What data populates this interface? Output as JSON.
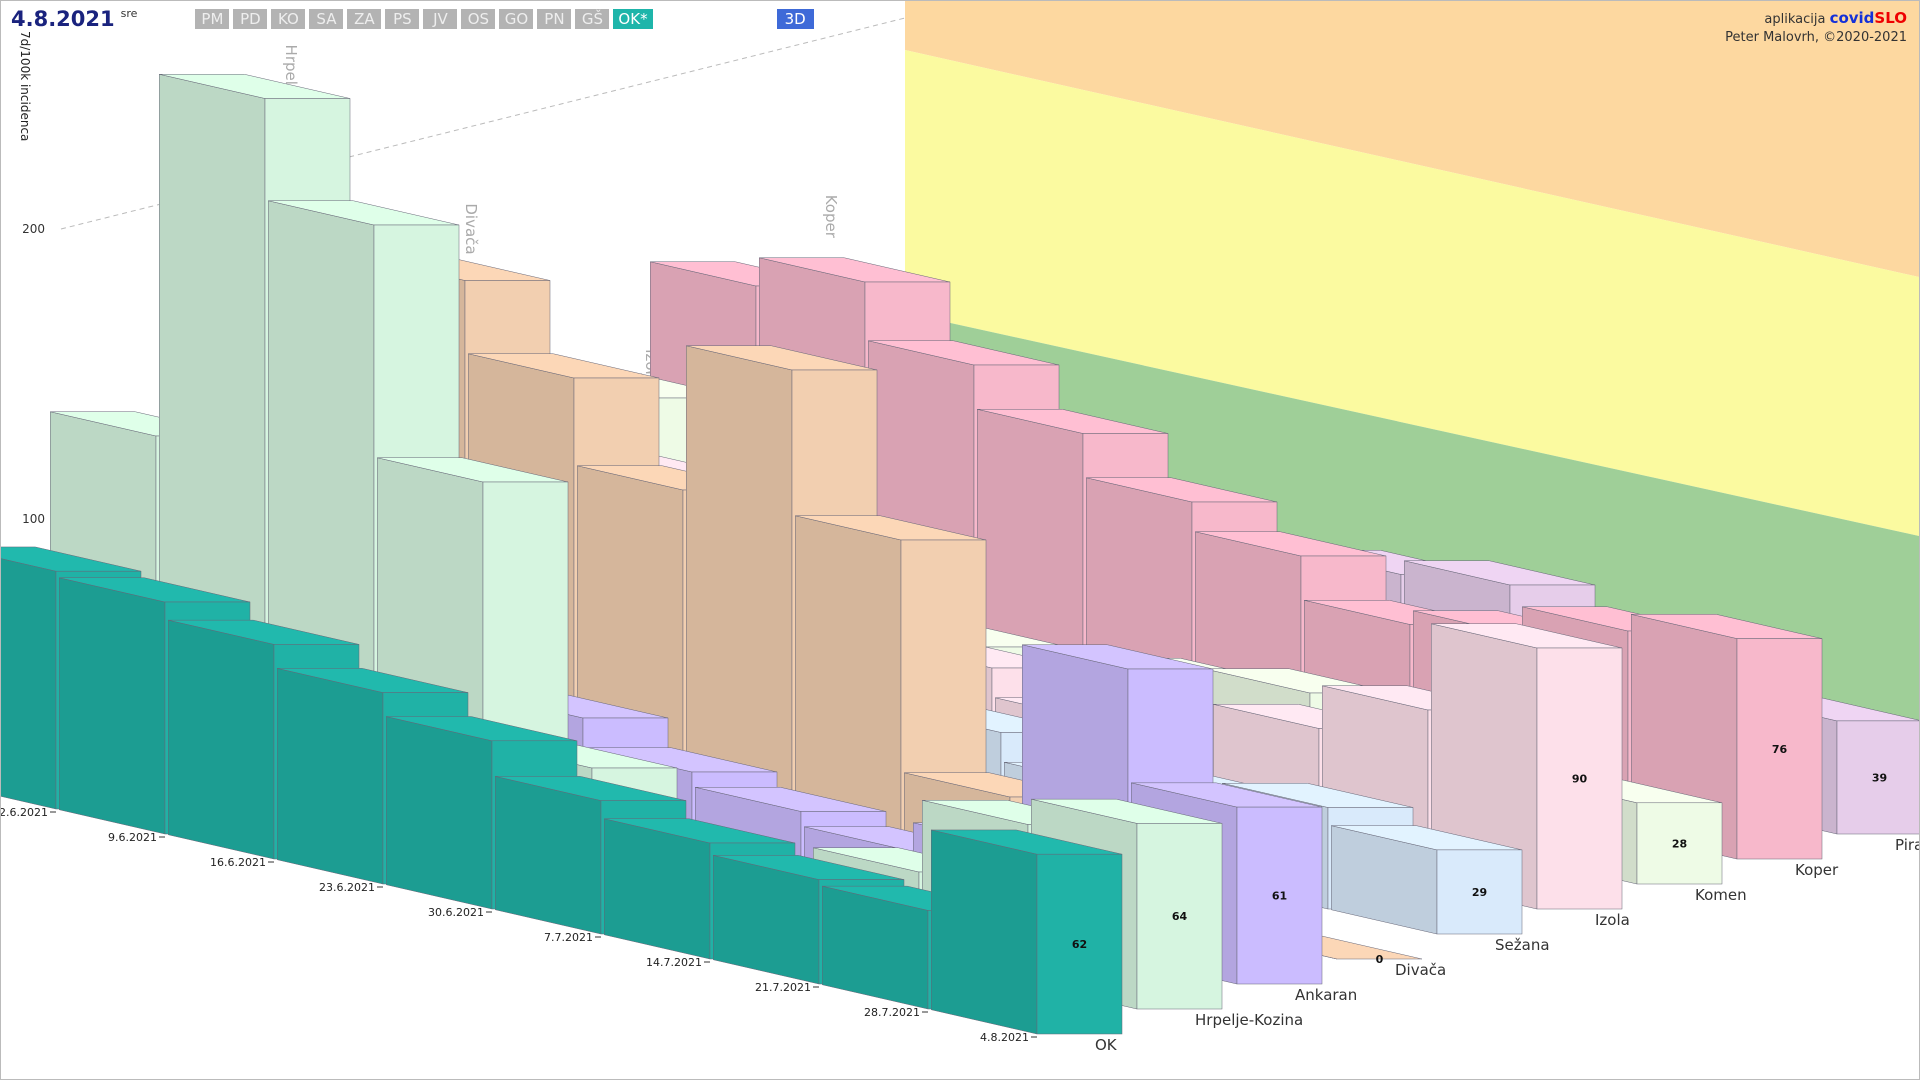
{
  "header": {
    "date": "4.8.2021",
    "weekday": "sre",
    "regions": [
      "PM",
      "PD",
      "KO",
      "SA",
      "ZA",
      "PS",
      "JV",
      "OS",
      "GO",
      "PN",
      "GŠ",
      "OK*"
    ],
    "active_region": "OK*",
    "view": "3D",
    "app_prefix": "aplikacija",
    "app_name_1": "covid",
    "app_name_2": "SLO",
    "author": "Peter Malovrh, ©2020-2021"
  },
  "chart_data": {
    "type": "bar3d",
    "y_label": "7d/100k incidenca",
    "x": [
      "2.6.2021",
      "9.6.2021",
      "16.6.2021",
      "23.6.2021",
      "30.6.2021",
      "7.7.2021",
      "14.7.2021",
      "21.7.2021",
      "28.7.2021",
      "4.8.2021"
    ],
    "ylim": [
      0,
      250
    ],
    "yticks": [
      100,
      200
    ],
    "grid": true,
    "series": [
      {
        "name": "OK",
        "color": "#20b2a6",
        "values": [
          82,
          80,
          74,
          66,
          58,
          46,
          40,
          36,
          34,
          62
        ]
      },
      {
        "name": "Hrpelje-Kozina",
        "color": "#d6f5e0",
        "values": [
          120,
          245,
          210,
          130,
          40,
          15,
          10,
          30,
          55,
          64
        ]
      },
      {
        "name": "Ankaran",
        "color": "#cbbcff",
        "values": [
          60,
          75,
          50,
          40,
          30,
          25,
          20,
          30,
          100,
          61
        ]
      },
      {
        "name": "Divača",
        "color": "#f2cfb0",
        "values": [
          130,
          165,
          140,
          110,
          160,
          110,
          30,
          15,
          5,
          0
        ]
      },
      {
        "name": "Sežana",
        "color": "#d9eafb",
        "values": [
          30,
          25,
          20,
          25,
          30,
          35,
          25,
          30,
          35,
          29
        ]
      },
      {
        "name": "Izola",
        "color": "#fde0ea",
        "values": [
          60,
          80,
          70,
          55,
          40,
          30,
          35,
          45,
          60,
          90
        ]
      },
      {
        "name": "Komen",
        "color": "#eefbe6",
        "values": [
          90,
          60,
          40,
          30,
          20,
          35,
          40,
          25,
          20,
          28
        ]
      },
      {
        "name": "Koper",
        "color": "#f7b8cb",
        "values": [
          120,
          130,
          110,
          95,
          80,
          70,
          55,
          60,
          70,
          76
        ]
      },
      {
        "name": "Piran",
        "color": "#e6cdea",
        "values": [
          50,
          70,
          60,
          45,
          40,
          55,
          60,
          30,
          40,
          39
        ]
      }
    ]
  }
}
